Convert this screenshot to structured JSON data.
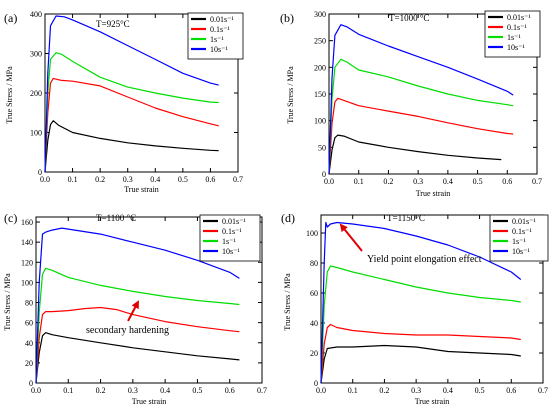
{
  "chart_data": [
    {
      "type": "line",
      "panel_label": "(a)",
      "annotation": "T=925°C",
      "xlabel": "True strain",
      "ylabel": "True Stress / MPa",
      "xlim": [
        0,
        0.7
      ],
      "ylim": [
        0,
        400
      ],
      "xticks": [
        0.0,
        0.1,
        0.2,
        0.3,
        0.4,
        0.5,
        0.6,
        0.7
      ],
      "yticks": [
        0,
        100,
        200,
        300,
        400
      ],
      "legend_position": "top-right",
      "series": [
        {
          "name": "0.01s⁻¹",
          "color": "#000000",
          "x": [
            0.0,
            0.01,
            0.02,
            0.03,
            0.05,
            0.1,
            0.2,
            0.3,
            0.4,
            0.5,
            0.6,
            0.63
          ],
          "y": [
            0,
            80,
            120,
            130,
            118,
            100,
            85,
            74,
            66,
            60,
            55,
            54
          ]
        },
        {
          "name": "0.1s⁻¹",
          "color": "#ff0000",
          "x": [
            0.0,
            0.01,
            0.02,
            0.03,
            0.06,
            0.1,
            0.2,
            0.3,
            0.4,
            0.5,
            0.6,
            0.63
          ],
          "y": [
            0,
            150,
            225,
            237,
            232,
            230,
            218,
            190,
            162,
            140,
            122,
            117
          ]
        },
        {
          "name": "1s⁻¹",
          "color": "#00dd00",
          "x": [
            0.0,
            0.01,
            0.02,
            0.04,
            0.06,
            0.1,
            0.2,
            0.3,
            0.4,
            0.5,
            0.6,
            0.63
          ],
          "y": [
            0,
            200,
            285,
            302,
            298,
            280,
            240,
            215,
            200,
            187,
            177,
            176
          ]
        },
        {
          "name": "10s⁻¹",
          "color": "#0000ff",
          "x": [
            0.0,
            0.01,
            0.02,
            0.04,
            0.07,
            0.1,
            0.2,
            0.3,
            0.4,
            0.5,
            0.6,
            0.63
          ],
          "y": [
            0,
            250,
            370,
            395,
            393,
            385,
            355,
            320,
            285,
            250,
            225,
            220
          ]
        }
      ],
      "legend": [
        "0.01s⁻¹",
        "0.1s⁻¹",
        "1s⁻¹",
        "10s⁻¹"
      ]
    },
    {
      "type": "line",
      "panel_label": "(b)",
      "annotation": "T=1000 °C",
      "xlabel": "True strain",
      "ylabel": "True Stress / MPa",
      "xlim": [
        0,
        0.7
      ],
      "ylim": [
        0,
        300
      ],
      "xticks": [
        0.0,
        0.1,
        0.2,
        0.3,
        0.4,
        0.5,
        0.6,
        0.7
      ],
      "yticks": [
        0,
        50,
        100,
        150,
        200,
        250,
        300
      ],
      "legend_position": "top-right",
      "series": [
        {
          "name": "0.01s⁻¹",
          "color": "#000000",
          "x": [
            0.0,
            0.01,
            0.02,
            0.03,
            0.05,
            0.1,
            0.2,
            0.3,
            0.4,
            0.5,
            0.58
          ],
          "y": [
            0,
            45,
            68,
            73,
            71,
            60,
            50,
            42,
            35,
            30,
            27
          ]
        },
        {
          "name": "0.1s⁻¹",
          "color": "#ff0000",
          "x": [
            0.0,
            0.01,
            0.02,
            0.03,
            0.05,
            0.1,
            0.2,
            0.3,
            0.4,
            0.5,
            0.6,
            0.62
          ],
          "y": [
            0,
            95,
            135,
            142,
            138,
            128,
            118,
            108,
            96,
            85,
            76,
            75
          ]
        },
        {
          "name": "1s⁻¹",
          "color": "#00dd00",
          "x": [
            0.0,
            0.01,
            0.02,
            0.04,
            0.06,
            0.1,
            0.2,
            0.3,
            0.4,
            0.5,
            0.6,
            0.62
          ],
          "y": [
            0,
            140,
            200,
            215,
            210,
            195,
            182,
            165,
            150,
            138,
            130,
            128
          ]
        },
        {
          "name": "10s⁻¹",
          "color": "#0000ff",
          "x": [
            0.0,
            0.01,
            0.02,
            0.04,
            0.06,
            0.1,
            0.2,
            0.3,
            0.4,
            0.5,
            0.6,
            0.62
          ],
          "y": [
            0,
            180,
            260,
            280,
            276,
            262,
            240,
            220,
            200,
            178,
            155,
            148
          ]
        }
      ],
      "legend": [
        "0.01s⁻¹",
        "0.1s⁻¹",
        "1s⁻¹",
        "10s⁻¹"
      ]
    },
    {
      "type": "line",
      "panel_label": "(c)",
      "annotation": "T=1100 °C",
      "callout": "secondary hardening",
      "xlabel": "True strain",
      "ylabel": "True Stress / MPa",
      "xlim": [
        0,
        0.7
      ],
      "ylim": [
        0,
        165
      ],
      "xticks": [
        0.0,
        0.1,
        0.2,
        0.3,
        0.4,
        0.5,
        0.6,
        0.7
      ],
      "yticks": [
        0,
        20,
        40,
        60,
        80,
        100,
        120,
        140,
        160
      ],
      "legend_position": "top-right",
      "series": [
        {
          "name": "0.01s⁻¹",
          "color": "#000000",
          "x": [
            0.0,
            0.01,
            0.02,
            0.03,
            0.05,
            0.1,
            0.2,
            0.3,
            0.4,
            0.5,
            0.6,
            0.63
          ],
          "y": [
            0,
            30,
            47,
            50,
            48,
            45,
            40,
            35,
            31,
            27,
            24,
            23
          ]
        },
        {
          "name": "0.1s⁻¹",
          "color": "#ff0000",
          "x": [
            0.0,
            0.01,
            0.02,
            0.03,
            0.05,
            0.1,
            0.15,
            0.2,
            0.25,
            0.3,
            0.4,
            0.5,
            0.6,
            0.63
          ],
          "y": [
            0,
            45,
            68,
            71,
            71,
            72,
            74,
            75,
            73,
            68,
            61,
            56,
            52,
            51
          ]
        },
        {
          "name": "1s⁻¹",
          "color": "#00dd00",
          "x": [
            0.0,
            0.01,
            0.02,
            0.03,
            0.05,
            0.1,
            0.2,
            0.3,
            0.4,
            0.5,
            0.6,
            0.63
          ],
          "y": [
            0,
            70,
            108,
            114,
            112,
            105,
            97,
            91,
            86,
            82,
            79,
            78
          ]
        },
        {
          "name": "10s⁻¹",
          "color": "#0000ff",
          "x": [
            0.0,
            0.01,
            0.02,
            0.03,
            0.05,
            0.08,
            0.1,
            0.2,
            0.3,
            0.4,
            0.5,
            0.6,
            0.63
          ],
          "y": [
            0,
            100,
            148,
            150,
            152,
            154,
            153,
            148,
            140,
            132,
            122,
            110,
            104
          ]
        }
      ],
      "legend": [
        "0.01s⁻¹",
        "0.1s⁻¹",
        "1s⁻¹",
        "10s⁻¹"
      ]
    },
    {
      "type": "line",
      "panel_label": "(d)",
      "annotation": "T=1150°C",
      "callout": "Yield point elongation effect",
      "xlabel": "True strain",
      "ylabel": "True Stress / MPa",
      "xlim": [
        0,
        0.7
      ],
      "ylim": [
        0,
        112
      ],
      "xticks": [
        0.0,
        0.1,
        0.2,
        0.3,
        0.4,
        0.5,
        0.6,
        0.7
      ],
      "yticks": [
        0,
        20,
        40,
        60,
        80,
        100
      ],
      "legend_position": "top-right",
      "series": [
        {
          "name": "0.01s⁻¹",
          "color": "#000000",
          "x": [
            0.0,
            0.01,
            0.02,
            0.05,
            0.1,
            0.2,
            0.3,
            0.4,
            0.5,
            0.6,
            0.63
          ],
          "y": [
            0,
            16,
            23,
            24,
            24,
            25,
            24,
            21,
            20,
            19,
            18
          ]
        },
        {
          "name": "0.1s⁻¹",
          "color": "#ff0000",
          "x": [
            0.0,
            0.01,
            0.02,
            0.03,
            0.05,
            0.1,
            0.2,
            0.3,
            0.4,
            0.5,
            0.6,
            0.63
          ],
          "y": [
            0,
            26,
            37,
            39,
            37,
            35,
            33,
            32,
            32,
            31,
            30,
            29
          ]
        },
        {
          "name": "1s⁻¹",
          "color": "#00dd00",
          "x": [
            0.0,
            0.01,
            0.02,
            0.03,
            0.05,
            0.1,
            0.2,
            0.3,
            0.4,
            0.5,
            0.6,
            0.63
          ],
          "y": [
            0,
            52,
            74,
            78,
            77,
            74,
            69,
            64,
            60,
            57,
            55,
            54
          ]
        },
        {
          "name": "10s⁻¹",
          "color": "#0000ff",
          "x": [
            0.0,
            0.01,
            0.015,
            0.02,
            0.03,
            0.05,
            0.1,
            0.2,
            0.3,
            0.4,
            0.5,
            0.6,
            0.63
          ],
          "y": [
            0,
            80,
            107,
            104,
            106,
            107,
            106,
            103,
            98,
            92,
            84,
            74,
            69
          ]
        }
      ],
      "legend": [
        "0.01s⁻¹",
        "0.1s⁻¹",
        "1s⁻¹",
        "10s⁻¹"
      ]
    }
  ]
}
